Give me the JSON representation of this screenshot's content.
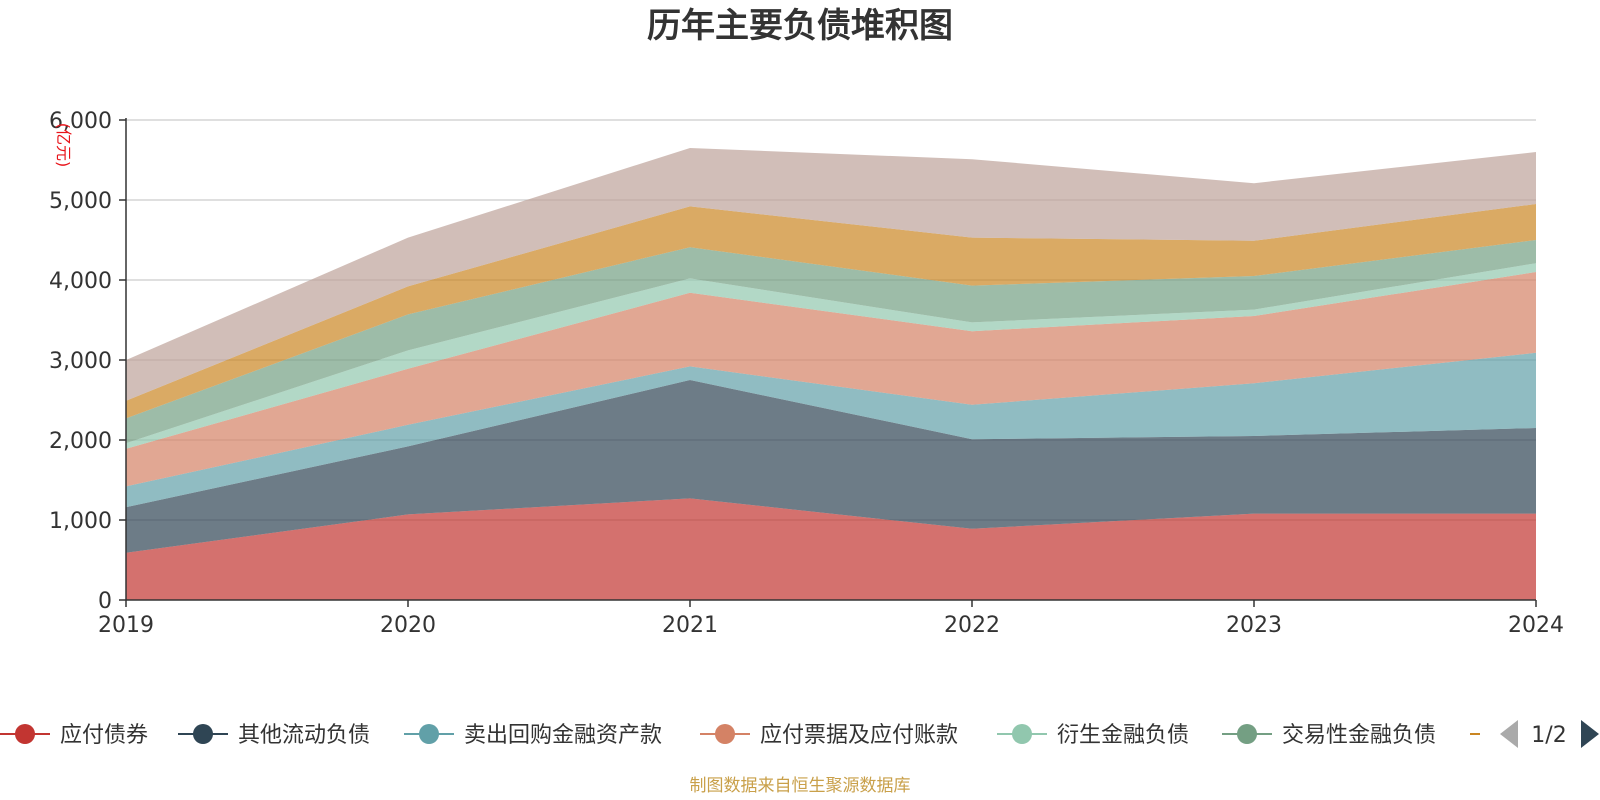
{
  "title": "历年主要负债堆积图",
  "source_note": "制图数据来自恒生聚源数据库",
  "chart_data": {
    "type": "area",
    "stacked": true,
    "title": "历年主要负债堆积图",
    "ylabel": "(亿元)",
    "xlabel": "",
    "categories": [
      "2019",
      "2020",
      "2021",
      "2022",
      "2023",
      "2024"
    ],
    "ylim": [
      0,
      6000
    ],
    "yticks": [
      0,
      1000,
      2000,
      3000,
      4000,
      5000,
      6000
    ],
    "ytick_labels": [
      "0",
      "1,000",
      "2,000",
      "3,000",
      "4,000",
      "5,000",
      "6,000"
    ],
    "grid": true,
    "series": [
      {
        "name": "应付债券",
        "color": "#c23531",
        "values": [
          590,
          1070,
          1270,
          890,
          1080,
          1080
        ]
      },
      {
        "name": "其他流动负债",
        "color": "#2f4554",
        "values": [
          570,
          850,
          1480,
          1120,
          970,
          1070
        ]
      },
      {
        "name": "卖出回购金融资产款",
        "color": "#61a0a8",
        "values": [
          260,
          270,
          170,
          430,
          660,
          940
        ]
      },
      {
        "name": "应付票据及应付账款",
        "color": "#d48265",
        "values": [
          470,
          700,
          920,
          920,
          840,
          1010
        ]
      },
      {
        "name": "衍生金融负债",
        "color": "#91c7ae",
        "values": [
          70,
          230,
          180,
          110,
          80,
          110
        ]
      },
      {
        "name": "交易性金融负债",
        "color": "#749f83",
        "values": [
          310,
          450,
          390,
          460,
          420,
          290
        ]
      },
      {
        "name": "",
        "color": "#ca8622",
        "values": [
          220,
          350,
          510,
          600,
          440,
          450
        ]
      },
      {
        "name": "",
        "color": "#bda29a",
        "values": [
          510,
          610,
          730,
          980,
          720,
          650
        ]
      }
    ]
  },
  "legend": {
    "page_indicator": "1/2",
    "visible_items": [
      "应付债券",
      "其他流动负债",
      "卖出回购金融资产款",
      "应付票据及应付账款",
      "衍生金融负债",
      "交易性金融负债"
    ]
  }
}
